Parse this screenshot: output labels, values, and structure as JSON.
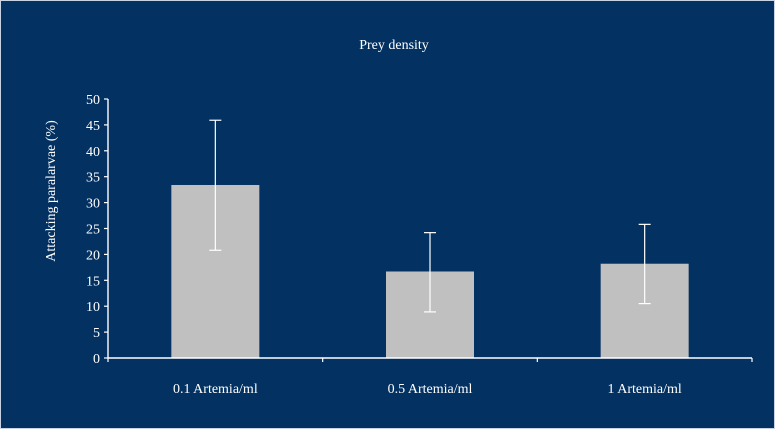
{
  "colors": {
    "background": "#033162",
    "bar_fill": "#c0c0c0",
    "axis": "#ffffff",
    "text": "#ffffff",
    "error_bar": "#ffffff"
  },
  "chart_data": {
    "type": "bar",
    "title": "Prey density",
    "xlabel": "",
    "ylabel": "Attacking paralarvae (%)",
    "categories": [
      "0.1 Artemia/ml",
      "0.5 Artemia/ml",
      "1 Artemia/ml"
    ],
    "values": [
      33.4,
      16.7,
      18.2
    ],
    "error_low": [
      20.8,
      8.9,
      10.5
    ],
    "error_high": [
      45.9,
      24.2,
      25.8
    ],
    "ylim": [
      0,
      50
    ],
    "yticks": [
      0,
      5,
      10,
      15,
      20,
      25,
      30,
      35,
      40,
      45,
      50
    ],
    "grid": false,
    "legend": "none"
  }
}
